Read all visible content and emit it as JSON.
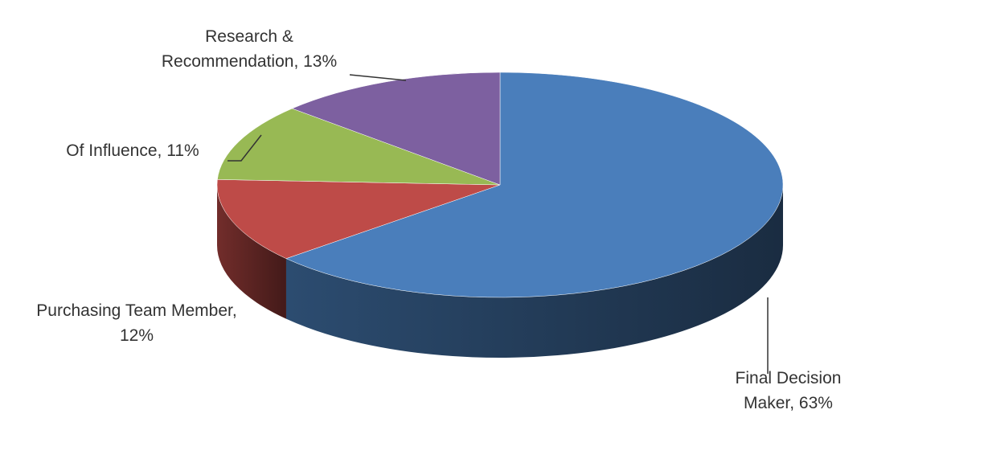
{
  "chart_data": {
    "type": "pie3d",
    "categories": [
      "Final Decision Maker",
      "Purchasing Team Member",
      "Of Influence",
      "Research & Recommendation"
    ],
    "values": [
      63,
      12,
      11,
      13
    ],
    "value_labels": [
      "63%",
      "12%",
      "11%",
      "13%"
    ],
    "label_separator": ", ",
    "colors": [
      "#4a7ebb",
      "#be4b48",
      "#98b954",
      "#7d60a0"
    ]
  }
}
